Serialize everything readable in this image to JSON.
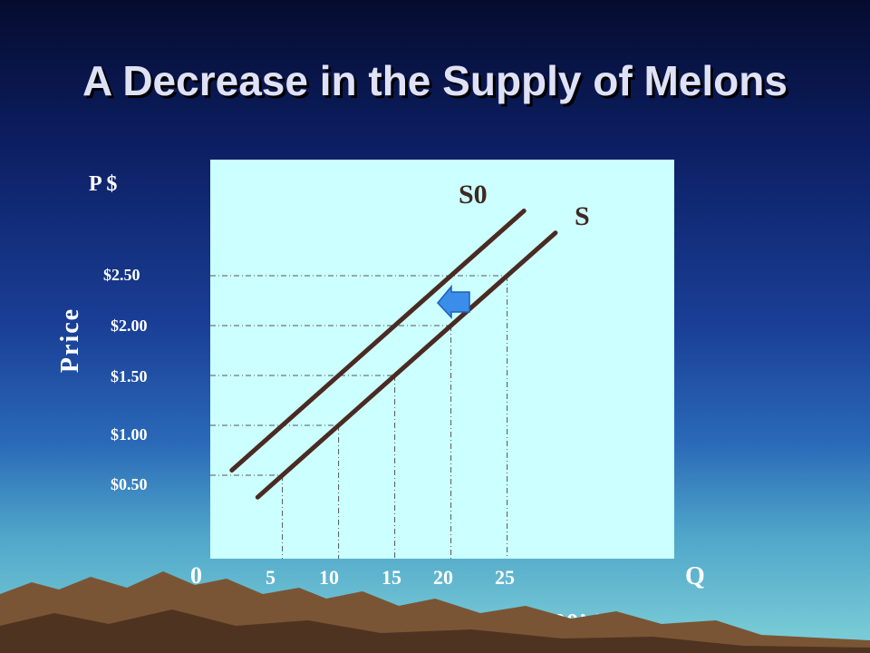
{
  "slide": {
    "title": "A Decrease in the Supply of Melons"
  },
  "colors": {
    "plot_background": "#ccffff",
    "curve": "#4a2a22",
    "arrow": "#3a8eea",
    "text": "#ffffff"
  },
  "chart_data": {
    "type": "line",
    "title": "A Decrease in the Supply of Melons",
    "y_top_label": "P $",
    "ylabel": "Price",
    "xlabel": "Quantity Supplied (000’s)",
    "x_end_label": "Q",
    "origin_label": "0",
    "x_ticks": [
      5,
      10,
      15,
      20,
      25
    ],
    "y_ticks": [
      "$0.50",
      "$1.00",
      "$1.50",
      "$2.00",
      "$2.50"
    ],
    "series": [
      {
        "name": "S0",
        "points": [
          [
            5,
            1.0
          ],
          [
            10,
            1.5
          ],
          [
            15,
            2.0
          ],
          [
            20,
            2.5
          ]
        ]
      },
      {
        "name": "S",
        "points": [
          [
            5,
            0.5
          ],
          [
            10,
            1.0
          ],
          [
            15,
            1.5
          ],
          [
            20,
            2.0
          ],
          [
            25,
            2.5
          ]
        ]
      }
    ],
    "shift_direction": "left",
    "grid": "dash-dot guide lines to the S curve"
  }
}
